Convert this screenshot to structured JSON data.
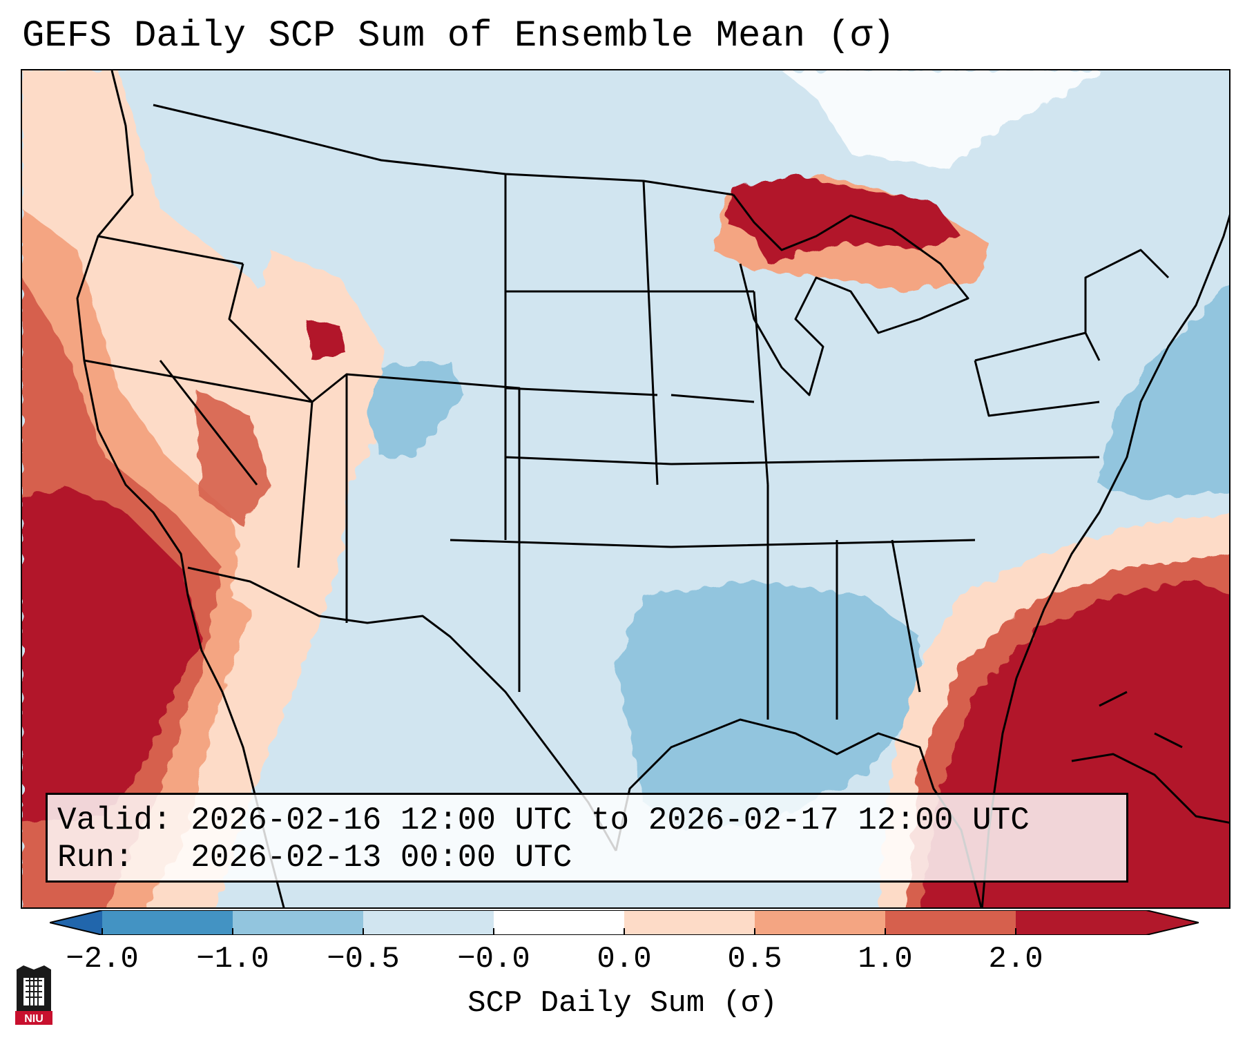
{
  "title": "GEFS Daily SCP Sum of Ensemble Mean (σ)",
  "infobox": {
    "valid_label": "Valid:",
    "valid_value": "2026-02-16 12:00 UTC to 2026-02-17 12:00 UTC",
    "run_label": "Run:",
    "run_value": "2026-02-13 00:00 UTC"
  },
  "colorbar": {
    "label": "SCP Daily Sum (σ)",
    "ticks": [
      "−2.0",
      "−1.0",
      "−0.5",
      "−0.0",
      "0.0",
      "0.5",
      "1.0",
      "2.0"
    ],
    "colors": [
      "#4393c3",
      "#92c5de",
      "#d1e5f0",
      "#ffffff",
      "#fddbc7",
      "#f4a582",
      "#d6604d",
      "#b2182b"
    ],
    "under_color": "#2166ac",
    "over_color": "#b2182b"
  },
  "map": {
    "projection": "Lambert Conformal, CONUS",
    "background_color": "#d1e5f0",
    "regions": [
      {
        "name": "pacific-west-coast",
        "level": "high",
        "color": "#b2182b"
      },
      {
        "name": "southeast-florida-bahamas",
        "level": "high",
        "color": "#b2182b"
      },
      {
        "name": "great-lakes-upper",
        "level": "high",
        "color": "#b2182b"
      },
      {
        "name": "gulf-of-mexico",
        "level": "low",
        "color": "#92c5de"
      },
      {
        "name": "atlantic-offshore",
        "level": "low",
        "color": "#92c5de"
      },
      {
        "name": "colorado-plateau",
        "level": "low",
        "color": "#92c5de"
      }
    ]
  },
  "logo": {
    "text": "NIU"
  }
}
